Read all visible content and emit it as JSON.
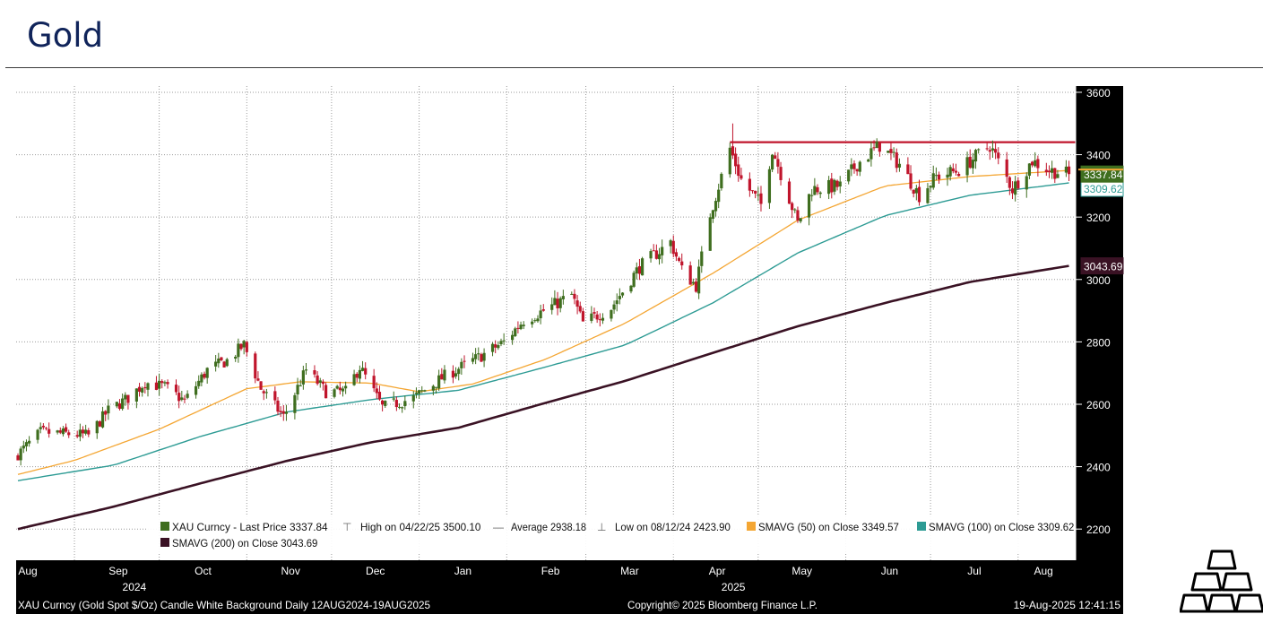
{
  "page": {
    "title": "Gold"
  },
  "colors": {
    "background": "#ffffff",
    "axis_panel": "#000000",
    "grid": "#9a9a9a",
    "candle_up": "#3f6e1f",
    "candle_down": "#c0152c",
    "sma50": "#f4a633",
    "sma100": "#2d9b94",
    "sma200": "#3a1224",
    "resistance": "#c0152c",
    "price_tag": "#3f6e1f",
    "title": "#10245a"
  },
  "chart_data": {
    "type": "candlestick",
    "title": "",
    "ylim": [
      2100,
      3620
    ],
    "yticks": [
      2200,
      2400,
      2600,
      2800,
      3000,
      3200,
      3400,
      3600
    ],
    "grid": true,
    "x_month_labels": [
      "Aug",
      "Sep",
      "Oct",
      "Nov",
      "Dec",
      "Jan",
      "Feb",
      "Mar",
      "Apr",
      "May",
      "Jun",
      "Jul",
      "Aug"
    ],
    "x_year_labels": [
      {
        "month_index": 1,
        "text": "2024"
      },
      {
        "month_index": 8,
        "text": "2025"
      }
    ],
    "resistance_level": 3440,
    "price_labels": [
      {
        "name": "last",
        "value": "3337.84"
      },
      {
        "name": "sma100",
        "value": "3309.62"
      },
      {
        "name": "sma200",
        "value": "3043.69"
      }
    ],
    "anchors": {
      "price": [
        [
          "2024-08-12",
          2440
        ],
        [
          "2024-08-20",
          2510
        ],
        [
          "2024-08-30",
          2505
        ],
        [
          "2024-09-06",
          2500
        ],
        [
          "2024-09-13",
          2580
        ],
        [
          "2024-09-20",
          2620
        ],
        [
          "2024-09-26",
          2670
        ],
        [
          "2024-10-03",
          2655
        ],
        [
          "2024-10-10",
          2610
        ],
        [
          "2024-10-18",
          2710
        ],
        [
          "2024-10-25",
          2740
        ],
        [
          "2024-10-31",
          2790
        ],
        [
          "2024-11-06",
          2650
        ],
        [
          "2024-11-14",
          2560
        ],
        [
          "2024-11-22",
          2710
        ],
        [
          "2024-11-29",
          2640
        ],
        [
          "2024-12-06",
          2640
        ],
        [
          "2024-12-11",
          2720
        ],
        [
          "2024-12-19",
          2590
        ],
        [
          "2024-12-30",
          2620
        ],
        [
          "2025-01-10",
          2690
        ],
        [
          "2025-01-22",
          2750
        ],
        [
          "2025-01-31",
          2800
        ],
        [
          "2025-02-07",
          2870
        ],
        [
          "2025-02-14",
          2900
        ],
        [
          "2025-02-24",
          2950
        ],
        [
          "2025-02-28",
          2860
        ],
        [
          "2025-03-10",
          2910
        ],
        [
          "2025-03-20",
          3040
        ],
        [
          "2025-03-31",
          3120
        ],
        [
          "2025-04-04",
          3030
        ],
        [
          "2025-04-09",
          2980
        ],
        [
          "2025-04-14",
          3210
        ],
        [
          "2025-04-21",
          3420
        ],
        [
          "2025-04-25",
          3320
        ],
        [
          "2025-05-02",
          3240
        ],
        [
          "2025-05-06",
          3420
        ],
        [
          "2025-05-15",
          3180
        ],
        [
          "2025-05-20",
          3290
        ],
        [
          "2025-05-30",
          3300
        ],
        [
          "2025-06-05",
          3370
        ],
        [
          "2025-06-13",
          3430
        ],
        [
          "2025-06-20",
          3370
        ],
        [
          "2025-06-27",
          3270
        ],
        [
          "2025-07-03",
          3330
        ],
        [
          "2025-07-11",
          3350
        ],
        [
          "2025-07-22",
          3430
        ],
        [
          "2025-07-30",
          3290
        ],
        [
          "2025-08-06",
          3380
        ],
        [
          "2025-08-12",
          3350
        ],
        [
          "2025-08-19",
          3337.84
        ]
      ],
      "sma50": [
        [
          "2024-08-12",
          2375
        ],
        [
          "2024-09-01",
          2420
        ],
        [
          "2024-10-01",
          2520
        ],
        [
          "2024-11-01",
          2650
        ],
        [
          "2024-11-20",
          2672
        ],
        [
          "2024-12-15",
          2668
        ],
        [
          "2025-01-01",
          2640
        ],
        [
          "2025-01-20",
          2665
        ],
        [
          "2025-02-15",
          2745
        ],
        [
          "2025-03-15",
          2860
        ],
        [
          "2025-04-15",
          3020
        ],
        [
          "2025-05-15",
          3190
        ],
        [
          "2025-06-15",
          3300
        ],
        [
          "2025-07-15",
          3330
        ],
        [
          "2025-08-19",
          3349.57
        ]
      ],
      "sma100": [
        [
          "2024-08-12",
          2355
        ],
        [
          "2024-09-15",
          2405
        ],
        [
          "2024-10-15",
          2495
        ],
        [
          "2024-11-15",
          2575
        ],
        [
          "2024-12-15",
          2615
        ],
        [
          "2025-01-15",
          2645
        ],
        [
          "2025-02-15",
          2720
        ],
        [
          "2025-03-15",
          2790
        ],
        [
          "2025-04-15",
          2925
        ],
        [
          "2025-05-15",
          3085
        ],
        [
          "2025-06-15",
          3205
        ],
        [
          "2025-07-15",
          3270
        ],
        [
          "2025-08-19",
          3309.62
        ]
      ],
      "sma200": [
        [
          "2024-08-12",
          2200
        ],
        [
          "2024-09-15",
          2272
        ],
        [
          "2024-10-15",
          2345
        ],
        [
          "2024-11-15",
          2418
        ],
        [
          "2024-12-15",
          2478
        ],
        [
          "2025-01-15",
          2525
        ],
        [
          "2025-02-15",
          2605
        ],
        [
          "2025-03-15",
          2675
        ],
        [
          "2025-04-15",
          2765
        ],
        [
          "2025-05-15",
          2850
        ],
        [
          "2025-06-15",
          2925
        ],
        [
          "2025-07-15",
          2992
        ],
        [
          "2025-08-19",
          3043.69
        ]
      ]
    },
    "legend": [
      {
        "kind": "candle",
        "color": "#3f6e1f",
        "text": "XAU Curncy - Last Price 3337.84"
      },
      {
        "kind": "high",
        "text": "High on 04/22/25 3500.10"
      },
      {
        "kind": "avg",
        "text": "Average 2938.18"
      },
      {
        "kind": "low",
        "text": "Low on 08/12/24 2423.90"
      },
      {
        "kind": "line",
        "color": "#f4a633",
        "text": "SMAVG (50)  on Close 3349.57"
      },
      {
        "kind": "line",
        "color": "#2d9b94",
        "text": "SMAVG (100)  on Close 3309.62"
      },
      {
        "kind": "line",
        "color": "#3a1224",
        "text": "SMAVG (200)  on Close 3043.69"
      }
    ],
    "footer": {
      "left": "XAU Curncy (Gold Spot  $/Oz) Candle White Background  Daily 12AUG2024-19AUG2025",
      "center": "Copyright© 2025 Bloomberg Finance L.P.",
      "right": "19-Aug-2025 12:41:15"
    }
  }
}
